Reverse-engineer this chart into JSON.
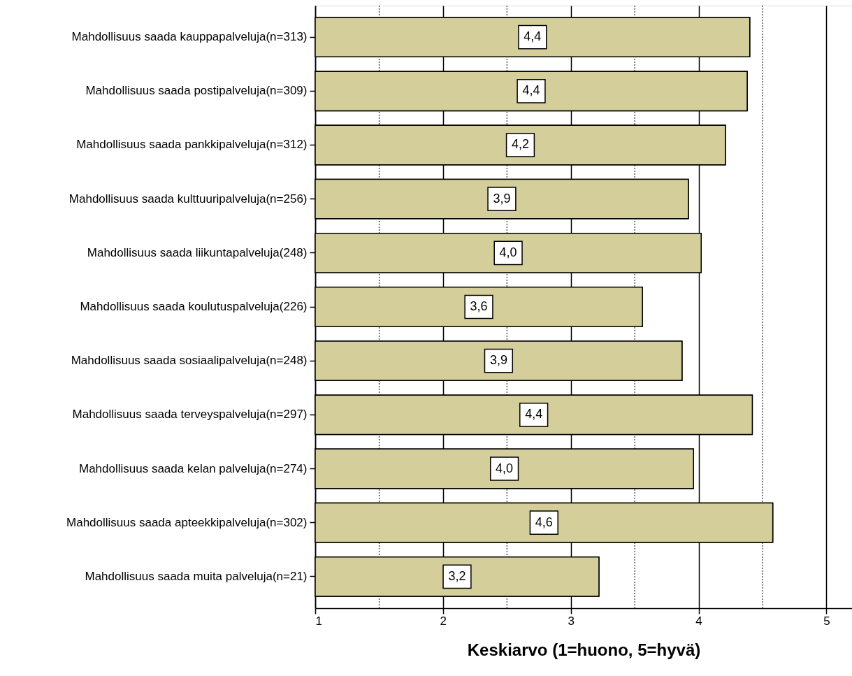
{
  "chart_data": {
    "type": "bar",
    "orientation": "horizontal",
    "xlabel": "Keskiarvo (1=huono, 5=hyvä)",
    "categories": [
      "Mahdollisuus saada kauppapalveluja(n=313)",
      "Mahdollisuus saada postipalveluja(n=309)",
      "Mahdollisuus saada pankkipalveluja(n=312)",
      "Mahdollisuus saada kulttuuripalveluja(n=256)",
      "Mahdollisuus saada liikuntapalveluja(248)",
      "Mahdollisuus saada koulutuspalveluja(226)",
      "Mahdollisuus saada sosiaalipalveluja(n=248)",
      "Mahdollisuus saada terveyspalveluja(n=297)",
      "Mahdollisuus saada kelan palveluja(n=274)",
      "Mahdollisuus saada apteekkipalveluja(n=302)",
      "Mahdollisuus saada muita palveluja(n=21)"
    ],
    "values": [
      4.4,
      4.38,
      4.21,
      3.92,
      4.02,
      3.56,
      3.87,
      4.42,
      3.96,
      4.58,
      3.22
    ],
    "value_labels": [
      "4,4",
      "4,4",
      "4,2",
      "3,9",
      "4,0",
      "3,6",
      "3,9",
      "4,4",
      "4,0",
      "4,6",
      "3,2"
    ],
    "color": "#d3ce9a",
    "xlim": [
      1,
      5.2
    ],
    "xticks": [
      1,
      {
        "value": 1.5,
        "label": null
      },
      2,
      {
        "value": 2.5,
        "label": null
      },
      3,
      {
        "value": 3.5,
        "label": null
      },
      4,
      {
        "value": 4.5,
        "label": null
      },
      5
    ],
    "grid": "x"
  }
}
